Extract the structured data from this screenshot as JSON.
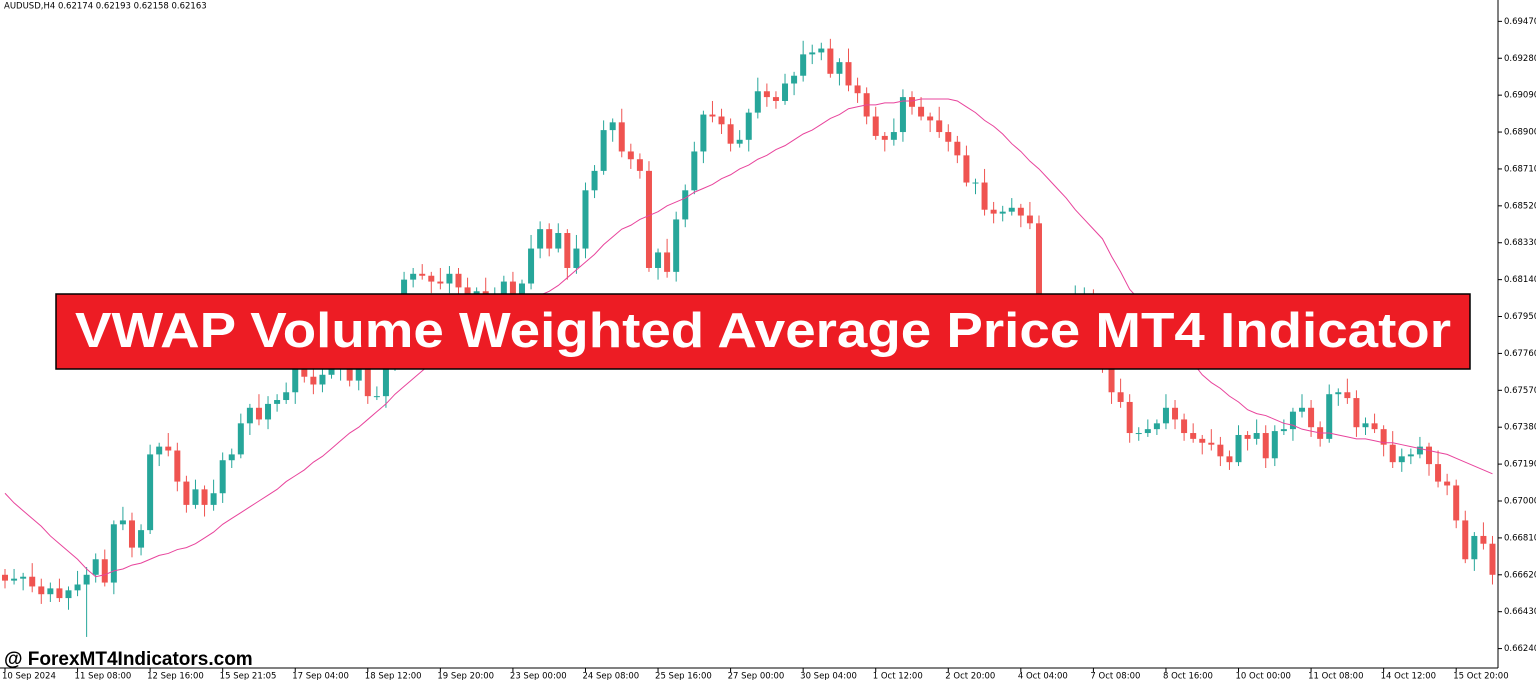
{
  "chart_data": {
    "type": "candlestick",
    "title": "AUDUSD,H4  0.62174 0.62193 0.62158 0.62163",
    "banner": "VWAP Volume Weighted Average Price MT4 Indicator",
    "watermark": "@ ForexMT4Indicators.com",
    "up_color": "#26a69a",
    "down_color": "#ef5350",
    "categories": [
      "10 Sep 2024",
      null,
      null,
      null,
      null,
      null,
      null,
      null,
      "11 Sep 08:00",
      null,
      null,
      null,
      null,
      null,
      null,
      null,
      "12 Sep 16:00",
      null,
      null,
      null,
      null,
      null,
      null,
      null,
      "15 Sep 21:05",
      null,
      null,
      null,
      null,
      null,
      null,
      null,
      "17 Sep 04:00",
      null,
      null,
      null,
      null,
      null,
      null,
      null,
      "18 Sep 12:00",
      null,
      null,
      null,
      null,
      null,
      null,
      null,
      "19 Sep 20:00",
      null,
      null,
      null,
      null,
      null,
      null,
      null,
      "23 Sep 00:00",
      null,
      null,
      null,
      null,
      null,
      null,
      null,
      "24 Sep 08:00",
      null,
      null,
      null,
      null,
      null,
      null,
      null,
      "25 Sep 16:00",
      null,
      null,
      null,
      null,
      null,
      null,
      null,
      "27 Sep 00:00",
      null,
      null,
      null,
      null,
      null,
      null,
      null,
      "30 Sep 04:00",
      null,
      null,
      null,
      null,
      null,
      null,
      null,
      "1 Oct 12:00",
      null,
      null,
      null,
      null,
      null,
      null,
      null,
      "2 Oct 20:00",
      null,
      null,
      null,
      null,
      null,
      null,
      null,
      "4 Oct 04:00",
      null,
      null,
      null,
      null,
      null,
      null,
      null,
      "7 Oct 08:00",
      null,
      null,
      null,
      null,
      null,
      null,
      null,
      "8 Oct 16:00",
      null,
      null,
      null,
      null,
      null,
      null,
      null,
      "10 Oct 00:00",
      null,
      null,
      null,
      null,
      null,
      null,
      null,
      "11 Oct 08:00",
      null,
      null,
      null,
      null,
      null,
      null,
      null,
      "14 Oct 12:00",
      null,
      null,
      null,
      null,
      null,
      null,
      null,
      "15 Oct 20:00",
      null,
      null,
      null,
      null
    ],
    "open": [
      0.6662,
      0.6659,
      0.666,
      0.6661,
      0.6656,
      0.6652,
      0.6655,
      0.665,
      0.6654,
      0.6657,
      0.6662,
      0.667,
      0.6658,
      0.6688,
      0.669,
      0.6676,
      0.6685,
      0.6724,
      0.6728,
      0.6726,
      0.671,
      0.6698,
      0.6706,
      0.6698,
      0.6704,
      0.6721,
      0.6724,
      0.674,
      0.6748,
      0.6742,
      0.675,
      0.6752,
      0.6756,
      0.6768,
      0.6764,
      0.676,
      0.6765,
      0.6768,
      0.6772,
      0.6762,
      0.6769,
      0.6754,
      0.6754,
      0.677,
      0.679,
      0.6814,
      0.6817,
      0.6816,
      0.6813,
      0.6812,
      0.6817,
      0.681,
      0.6806,
      0.6808,
      0.6804,
      0.6806,
      0.6813,
      0.6806,
      0.6812,
      0.683,
      0.684,
      0.683,
      0.6838,
      0.682,
      0.683,
      0.686,
      0.687,
      0.6891,
      0.6895,
      0.688,
      0.6876,
      0.687,
      0.682,
      0.6828,
      0.6818,
      0.6845,
      0.686,
      0.688,
      0.6899,
      0.6898,
      0.6894,
      0.6884,
      0.6886,
      0.69,
      0.6911,
      0.6908,
      0.6906,
      0.6915,
      0.6919,
      0.693,
      0.6931,
      0.6933,
      0.692,
      0.6926,
      0.6914,
      0.691,
      0.6898,
      0.6888,
      0.6886,
      0.689,
      0.6908,
      0.6903,
      0.6898,
      0.6896,
      0.689,
      0.6885,
      0.6878,
      0.6864,
      0.6864,
      0.685,
      0.6848,
      0.6849,
      0.6851,
      0.6847,
      0.6843,
      0.6783,
      0.6795,
      0.6796,
      0.6797,
      0.6804,
      0.6806,
      0.6792,
      0.6768,
      0.6756,
      0.6751,
      0.6735,
      0.6735,
      0.6737,
      0.674,
      0.6748,
      0.6742,
      0.6735,
      0.6732,
      0.673,
      0.6729,
      0.6723,
      0.672,
      0.6734,
      0.6732,
      0.6735,
      0.6722,
      0.6736,
      0.6737,
      0.6746,
      0.6748,
      0.6738,
      0.6732,
      0.6755,
      0.6756,
      0.6753,
      0.6738,
      0.674,
      0.6737,
      0.6729,
      0.672,
      0.6723,
      0.6724,
      0.6728,
      0.6719,
      0.671,
      0.6708,
      0.669,
      0.667,
      0.6682,
      0.6678
    ],
    "high": [
      0.6665,
      0.6665,
      0.6663,
      0.6668,
      0.666,
      0.6658,
      0.666,
      0.6656,
      0.6664,
      0.6666,
      0.6673,
      0.6675,
      0.669,
      0.6697,
      0.6694,
      0.6688,
      0.6729,
      0.673,
      0.6735,
      0.673,
      0.6713,
      0.6711,
      0.6708,
      0.6711,
      0.6725,
      0.6727,
      0.6745,
      0.675,
      0.6755,
      0.6754,
      0.6755,
      0.6761,
      0.677,
      0.6775,
      0.6768,
      0.6768,
      0.6773,
      0.6774,
      0.6779,
      0.6773,
      0.6772,
      0.6759,
      0.6772,
      0.6797,
      0.6818,
      0.682,
      0.6822,
      0.6818,
      0.682,
      0.6821,
      0.682,
      0.6815,
      0.681,
      0.6815,
      0.681,
      0.6816,
      0.6818,
      0.6814,
      0.6837,
      0.6844,
      0.6843,
      0.6843,
      0.684,
      0.6837,
      0.6864,
      0.6873,
      0.6896,
      0.6897,
      0.6902,
      0.6884,
      0.6879,
      0.6875,
      0.683,
      0.6835,
      0.6849,
      0.6863,
      0.6885,
      0.6901,
      0.6906,
      0.6902,
      0.6897,
      0.6891,
      0.6902,
      0.6918,
      0.6915,
      0.6911,
      0.692,
      0.6921,
      0.6937,
      0.6935,
      0.6936,
      0.6938,
      0.6928,
      0.6933,
      0.6918,
      0.6913,
      0.6903,
      0.689,
      0.6897,
      0.6912,
      0.6911,
      0.6908,
      0.69,
      0.6903,
      0.6894,
      0.6888,
      0.6883,
      0.6866,
      0.6871,
      0.6854,
      0.6852,
      0.6856,
      0.6853,
      0.6854,
      0.6847,
      0.6798,
      0.6801,
      0.6799,
      0.6811,
      0.681,
      0.6809,
      0.6797,
      0.677,
      0.6763,
      0.6755,
      0.6738,
      0.6742,
      0.6742,
      0.6755,
      0.6752,
      0.6745,
      0.674,
      0.6734,
      0.6737,
      0.6733,
      0.6726,
      0.6739,
      0.6736,
      0.6742,
      0.6739,
      0.6739,
      0.6742,
      0.6748,
      0.6755,
      0.6752,
      0.6741,
      0.676,
      0.6758,
      0.6763,
      0.6757,
      0.6743,
      0.6745,
      0.6739,
      0.6736,
      0.6727,
      0.6727,
      0.6733,
      0.673,
      0.6726,
      0.6714,
      0.6711,
      0.6695,
      0.6684,
      0.6689,
      0.6682
    ],
    "low": [
      0.6655,
      0.6657,
      0.6654,
      0.6653,
      0.6647,
      0.6648,
      0.6648,
      0.6644,
      0.6651,
      0.663,
      0.6658,
      0.6656,
      0.6652,
      0.6685,
      0.6671,
      0.6672,
      0.6683,
      0.6718,
      0.6723,
      0.6705,
      0.6694,
      0.6696,
      0.6692,
      0.6695,
      0.6699,
      0.6717,
      0.6722,
      0.6734,
      0.6739,
      0.6737,
      0.6746,
      0.675,
      0.675,
      0.6761,
      0.6755,
      0.6756,
      0.6763,
      0.6762,
      0.6759,
      0.6757,
      0.675,
      0.6752,
      0.6748,
      0.6767,
      0.6785,
      0.681,
      0.6814,
      0.6807,
      0.6809,
      0.6807,
      0.6806,
      0.6804,
      0.68,
      0.6801,
      0.6799,
      0.6802,
      0.6804,
      0.68,
      0.6809,
      0.6825,
      0.6826,
      0.6828,
      0.6814,
      0.6817,
      0.6825,
      0.6856,
      0.6868,
      0.6885,
      0.6877,
      0.6871,
      0.6866,
      0.6818,
      0.6814,
      0.6815,
      0.6813,
      0.6841,
      0.6858,
      0.6874,
      0.6895,
      0.6889,
      0.688,
      0.6882,
      0.688,
      0.6897,
      0.6903,
      0.6902,
      0.6904,
      0.6909,
      0.6916,
      0.6925,
      0.6927,
      0.6918,
      0.6914,
      0.6911,
      0.6905,
      0.6894,
      0.6886,
      0.688,
      0.6883,
      0.6885,
      0.6899,
      0.6896,
      0.689,
      0.6887,
      0.688,
      0.6874,
      0.6862,
      0.6858,
      0.6847,
      0.6843,
      0.6844,
      0.6847,
      0.6841,
      0.684,
      0.6778,
      0.6779,
      0.6793,
      0.679,
      0.6794,
      0.6799,
      0.6788,
      0.6766,
      0.675,
      0.6748,
      0.673,
      0.6731,
      0.6733,
      0.6734,
      0.6737,
      0.6737,
      0.6731,
      0.673,
      0.6724,
      0.6726,
      0.6718,
      0.6716,
      0.6718,
      0.6726,
      0.6729,
      0.6717,
      0.6718,
      0.6734,
      0.6731,
      0.6743,
      0.6733,
      0.6728,
      0.673,
      0.6749,
      0.675,
      0.6733,
      0.6734,
      0.6735,
      0.6723,
      0.6717,
      0.6715,
      0.6719,
      0.6722,
      0.6713,
      0.6707,
      0.6703,
      0.6686,
      0.6668,
      0.6664,
      0.6675,
      0.6657
    ],
    "close": [
      0.6659,
      0.666,
      0.6661,
      0.6656,
      0.6652,
      0.6655,
      0.665,
      0.6654,
      0.6657,
      0.6662,
      0.667,
      0.6658,
      0.6688,
      0.669,
      0.6676,
      0.6685,
      0.6724,
      0.6728,
      0.6726,
      0.671,
      0.6698,
      0.6706,
      0.6698,
      0.6704,
      0.6721,
      0.6724,
      0.674,
      0.6748,
      0.6742,
      0.675,
      0.6752,
      0.6756,
      0.6768,
      0.6764,
      0.676,
      0.6765,
      0.6768,
      0.6772,
      0.6762,
      0.6769,
      0.6754,
      0.6754,
      0.677,
      0.679,
      0.6814,
      0.6817,
      0.6816,
      0.6813,
      0.6812,
      0.6817,
      0.681,
      0.6806,
      0.6808,
      0.6804,
      0.6806,
      0.6813,
      0.6806,
      0.6812,
      0.683,
      0.684,
      0.683,
      0.6838,
      0.682,
      0.683,
      0.686,
      0.687,
      0.6891,
      0.6895,
      0.688,
      0.6876,
      0.687,
      0.682,
      0.6828,
      0.6818,
      0.6845,
      0.686,
      0.688,
      0.6899,
      0.6898,
      0.6894,
      0.6884,
      0.6886,
      0.69,
      0.6911,
      0.6908,
      0.6906,
      0.6915,
      0.6919,
      0.693,
      0.6931,
      0.6933,
      0.692,
      0.6926,
      0.6914,
      0.691,
      0.6898,
      0.6888,
      0.6886,
      0.689,
      0.6908,
      0.6903,
      0.6898,
      0.6896,
      0.689,
      0.6885,
      0.6878,
      0.6864,
      0.6864,
      0.685,
      0.6848,
      0.6849,
      0.6851,
      0.6847,
      0.6843,
      0.6783,
      0.6795,
      0.6796,
      0.6797,
      0.6804,
      0.6806,
      0.6792,
      0.6768,
      0.6756,
      0.6751,
      0.6735,
      0.6735,
      0.6737,
      0.674,
      0.6748,
      0.6742,
      0.6735,
      0.6732,
      0.673,
      0.6729,
      0.6723,
      0.672,
      0.6734,
      0.6732,
      0.6735,
      0.6722,
      0.6736,
      0.6737,
      0.6746,
      0.6748,
      0.6738,
      0.6732,
      0.6755,
      0.6756,
      0.6753,
      0.6738,
      0.674,
      0.6737,
      0.6729,
      0.672,
      0.6723,
      0.6724,
      0.6728,
      0.6719,
      0.671,
      0.6708,
      0.669,
      0.667,
      0.6682,
      0.6678,
      0.6662
    ],
    "overlay": {
      "color": "#e8449c",
      "values": [
        0.6704,
        0.6699,
        0.6695,
        0.6691,
        0.6687,
        0.6682,
        0.6678,
        0.6674,
        0.667,
        0.6665,
        0.6661,
        0.6662,
        0.6664,
        0.6665,
        0.6667,
        0.6668,
        0.667,
        0.6672,
        0.6673,
        0.6675,
        0.6676,
        0.6678,
        0.6681,
        0.6684,
        0.6688,
        0.6691,
        0.6694,
        0.6697,
        0.67,
        0.6703,
        0.6706,
        0.671,
        0.6713,
        0.6716,
        0.672,
        0.6723,
        0.6727,
        0.6731,
        0.6735,
        0.6738,
        0.6742,
        0.6746,
        0.675,
        0.6755,
        0.6759,
        0.6763,
        0.6767,
        0.6771,
        0.6776,
        0.678,
        0.6783,
        0.6785,
        0.6788,
        0.679,
        0.6793,
        0.6796,
        0.6798,
        0.6801,
        0.6803,
        0.6806,
        0.6808,
        0.6811,
        0.6815,
        0.6819,
        0.6823,
        0.6827,
        0.6832,
        0.6836,
        0.684,
        0.6842,
        0.6845,
        0.6847,
        0.6849,
        0.6852,
        0.6854,
        0.6856,
        0.6859,
        0.6861,
        0.6863,
        0.6866,
        0.6868,
        0.6871,
        0.6873,
        0.6876,
        0.6878,
        0.6881,
        0.6883,
        0.6886,
        0.6889,
        0.6891,
        0.6894,
        0.6897,
        0.6899,
        0.6902,
        0.6903,
        0.6904,
        0.6904,
        0.6905,
        0.6905,
        0.6906,
        0.6906,
        0.6907,
        0.6907,
        0.6907,
        0.6907,
        0.6906,
        0.6903,
        0.69,
        0.6896,
        0.6893,
        0.6889,
        0.6884,
        0.688,
        0.6875,
        0.6871,
        0.6866,
        0.6861,
        0.6856,
        0.685,
        0.6845,
        0.684,
        0.6835,
        0.6826,
        0.6818,
        0.6809,
        0.6804,
        0.6798,
        0.6793,
        0.6787,
        0.6782,
        0.6776,
        0.6771,
        0.6765,
        0.6761,
        0.6758,
        0.6754,
        0.6751,
        0.6747,
        0.6745,
        0.6744,
        0.6742,
        0.674,
        0.6739,
        0.6737,
        0.6736,
        0.6735,
        0.6735,
        0.6734,
        0.6733,
        0.6732,
        0.6732,
        0.6731,
        0.673,
        0.673,
        0.6729,
        0.6728,
        0.6727,
        0.6726,
        0.6725,
        0.6724,
        0.6722,
        0.672,
        0.6718,
        0.6716,
        0.6714
      ]
    },
    "ylim": [
      0.6614,
      0.6958
    ],
    "yticks": [
      {
        "value": 0.6947,
        "label": "0.69470"
      },
      {
        "value": 0.6928,
        "label": "0.69280"
      },
      {
        "value": 0.6909,
        "label": "0.69090"
      },
      {
        "value": 0.689,
        "label": "0.68900"
      },
      {
        "value": 0.6871,
        "label": "0.68710"
      },
      {
        "value": 0.6852,
        "label": "0.68520"
      },
      {
        "value": 0.6833,
        "label": "0.68330"
      },
      {
        "value": 0.6814,
        "label": "0.68140"
      },
      {
        "value": 0.6795,
        "label": "0.67950"
      },
      {
        "value": 0.6776,
        "label": "0.67760"
      },
      {
        "value": 0.6757,
        "label": "0.67570"
      },
      {
        "value": 0.6738,
        "label": "0.67380"
      },
      {
        "value": 0.6719,
        "label": "0.67190"
      },
      {
        "value": 0.67,
        "label": "0.67000"
      },
      {
        "value": 0.6681,
        "label": "0.66810"
      },
      {
        "value": 0.6662,
        "label": "0.66620"
      },
      {
        "value": 0.6643,
        "label": "0.66430"
      },
      {
        "value": 0.6624,
        "label": "0.66240"
      }
    ]
  }
}
